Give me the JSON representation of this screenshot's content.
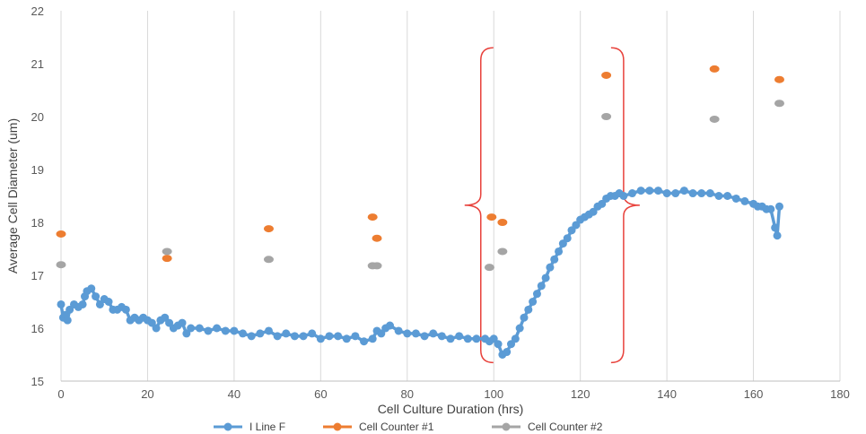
{
  "chart_data": {
    "type": "scatter",
    "title": "",
    "xlabel": "Cell Culture Duration (hrs)",
    "ylabel": "Average Cell Diameter (um)",
    "xlim": [
      0,
      180
    ],
    "ylim": [
      15,
      22
    ],
    "x_ticks": [
      "0",
      "20",
      "40",
      "60",
      "80",
      "100",
      "120",
      "140",
      "160",
      "180"
    ],
    "y_ticks": [
      "15",
      "16",
      "17",
      "18",
      "19",
      "20",
      "21",
      "22"
    ],
    "grid": "vertical",
    "legend_position": "bottom",
    "colors": {
      "line_f": "#5B9BD5",
      "counter1": "#ED7D31",
      "counter2": "#A5A5A5",
      "bracket": "#E8423C",
      "grid": "#D9D9D9"
    },
    "series": [
      {
        "name": "I Line F",
        "style": "line-markers",
        "x": [
          0,
          0.5,
          1,
          1.5,
          2,
          3,
          4,
          5,
          5.5,
          6,
          7,
          8,
          9,
          10,
          11,
          12,
          13,
          14,
          15,
          16,
          17,
          18,
          19,
          20,
          21,
          22,
          23,
          24,
          25,
          26,
          27,
          28,
          29,
          30,
          32,
          34,
          36,
          38,
          40,
          42,
          44,
          46,
          48,
          50,
          52,
          54,
          56,
          58,
          60,
          62,
          64,
          66,
          68,
          70,
          72,
          73,
          74,
          75,
          76,
          78,
          80,
          82,
          84,
          86,
          88,
          90,
          92,
          94,
          96,
          98,
          99,
          100,
          101,
          102,
          103,
          104,
          105,
          106,
          107,
          108,
          109,
          110,
          111,
          112,
          113,
          114,
          115,
          116,
          117,
          118,
          119,
          120,
          121,
          122,
          123,
          124,
          125,
          126,
          127,
          128,
          129,
          130,
          132,
          134,
          136,
          138,
          140,
          142,
          144,
          146,
          148,
          150,
          152,
          154,
          156,
          158,
          160,
          161,
          162,
          163,
          164,
          165,
          165.5,
          166
        ],
        "y": [
          16.45,
          16.2,
          16.25,
          16.15,
          16.35,
          16.45,
          16.4,
          16.45,
          16.6,
          16.7,
          16.75,
          16.6,
          16.45,
          16.55,
          16.5,
          16.35,
          16.35,
          16.4,
          16.35,
          16.15,
          16.2,
          16.15,
          16.2,
          16.15,
          16.1,
          16.0,
          16.15,
          16.2,
          16.1,
          16.0,
          16.05,
          16.1,
          15.9,
          16.0,
          16.0,
          15.95,
          16.0,
          15.95,
          15.95,
          15.9,
          15.85,
          15.9,
          15.95,
          15.85,
          15.9,
          15.85,
          15.85,
          15.9,
          15.8,
          15.85,
          15.85,
          15.8,
          15.85,
          15.75,
          15.8,
          15.95,
          15.9,
          16.0,
          16.05,
          15.95,
          15.9,
          15.9,
          15.85,
          15.9,
          15.85,
          15.8,
          15.85,
          15.8,
          15.8,
          15.8,
          15.75,
          15.8,
          15.7,
          15.5,
          15.55,
          15.7,
          15.8,
          16.0,
          16.2,
          16.35,
          16.5,
          16.65,
          16.8,
          16.95,
          17.15,
          17.3,
          17.45,
          17.6,
          17.7,
          17.85,
          17.95,
          18.05,
          18.1,
          18.15,
          18.2,
          18.3,
          18.35,
          18.45,
          18.5,
          18.5,
          18.55,
          18.5,
          18.55,
          18.6,
          18.6,
          18.6,
          18.55,
          18.55,
          18.6,
          18.55,
          18.55,
          18.55,
          18.5,
          18.5,
          18.45,
          18.4,
          18.35,
          18.3,
          18.3,
          18.25,
          18.25,
          17.9,
          17.75,
          18.3
        ]
      },
      {
        "name": "Cell Counter #1",
        "style": "markers",
        "x": [
          0,
          24.5,
          48,
          72,
          73,
          99.5,
          102,
          126,
          151,
          166
        ],
        "y": [
          17.78,
          17.32,
          17.88,
          18.1,
          17.7,
          18.1,
          18.0,
          20.78,
          20.9,
          20.7
        ]
      },
      {
        "name": "Cell Counter #2",
        "style": "markers",
        "x": [
          0,
          24.5,
          48,
          72,
          73,
          99,
          102,
          126,
          151,
          166
        ],
        "y": [
          17.2,
          17.45,
          17.3,
          17.18,
          17.18,
          17.15,
          17.45,
          20.0,
          19.95,
          20.25
        ]
      }
    ],
    "annotations": [
      {
        "type": "brace-open",
        "x": 97,
        "y_range": [
          15.35,
          21.3
        ],
        "color": "#E8423C"
      },
      {
        "type": "brace-close",
        "x": 130,
        "y_range": [
          15.35,
          21.3
        ],
        "color": "#E8423C"
      }
    ]
  }
}
